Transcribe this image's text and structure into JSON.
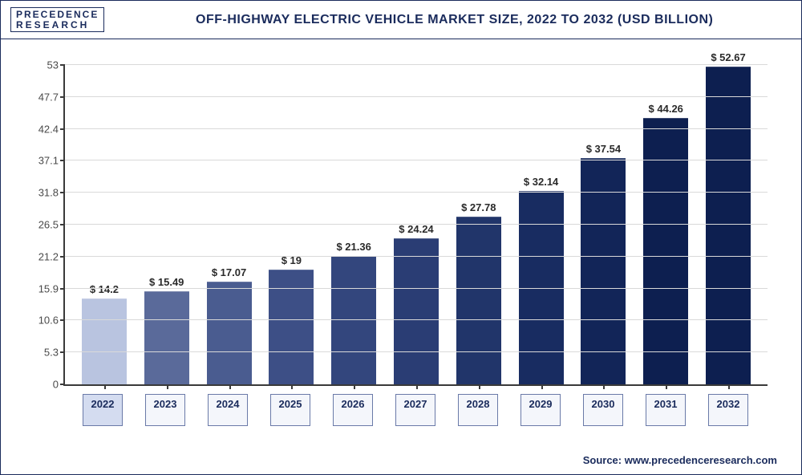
{
  "header": {
    "logo_line1": "PRECEDENCE",
    "logo_line2": "RESEARCH",
    "title": "OFF-HIGHWAY ELECTRIC VEHICLE MARKET SIZE, 2022 TO 2032 (USD BILLION)",
    "title_fontsize": 17
  },
  "chart": {
    "type": "bar",
    "ylim": [
      0,
      53
    ],
    "yticks": [
      0,
      5.3,
      10.6,
      15.9,
      21.2,
      26.5,
      31.8,
      37.1,
      42.4,
      47.7,
      53
    ],
    "ytick_labels": [
      "0",
      "5.3",
      "10.6",
      "15.9",
      "21.2",
      "26.5",
      "31.8",
      "37.1",
      "42.4",
      "47.7",
      "53"
    ],
    "categories": [
      "2022",
      "2023",
      "2024",
      "2025",
      "2026",
      "2027",
      "2028",
      "2029",
      "2030",
      "2031",
      "2032"
    ],
    "values": [
      14.2,
      15.49,
      17.07,
      19,
      21.36,
      24.24,
      27.78,
      32.14,
      37.54,
      44.26,
      52.67
    ],
    "value_labels": [
      "$ 14.2",
      "$ 15.49",
      "$ 17.07",
      "$ 19",
      "$ 21.36",
      "$ 24.24",
      "$ 27.78",
      "$ 32.14",
      "$ 37.54",
      "$ 44.26",
      "$ 52.67"
    ],
    "bar_colors": [
      "#b9c4e0",
      "#5a6a9a",
      "#4a5c90",
      "#3d4f86",
      "#33467d",
      "#2a3d74",
      "#21356a",
      "#182c61",
      "#122558",
      "#0d1f50",
      "#0d1f50"
    ],
    "grid_color": "#d9d9d9",
    "axis_color": "#3a3a3a",
    "background_color": "#ffffff",
    "bar_width_pct": 72,
    "label_fontsize": 13
  },
  "footer": {
    "source": "Source: www.precedenceresearch.com"
  }
}
